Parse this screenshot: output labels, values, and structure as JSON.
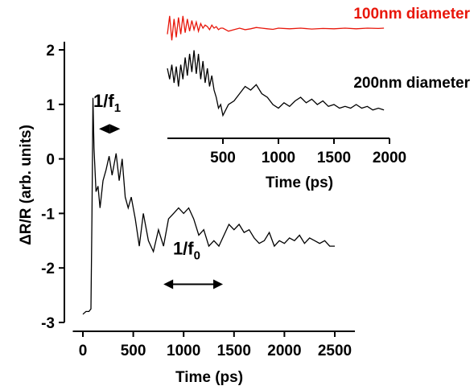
{
  "chart_data": [
    {
      "type": "line",
      "panel": "main",
      "xlabel": "Time (ps)",
      "ylabel": "ΔR/R (arb. units)",
      "xlim": [
        -100,
        2700
      ],
      "ylim": [
        -3,
        2.15
      ],
      "xticks": [
        0,
        500,
        1000,
        1500,
        2000,
        2500
      ],
      "yticks": [
        -3,
        -2,
        -1,
        0,
        1,
        2
      ],
      "grid": false,
      "annotations": [
        {
          "text": "1/f",
          "subscript": "1",
          "x": 240,
          "y": 0.95,
          "arrow": [
            160,
            370
          ],
          "arrow_y": 0.55
        },
        {
          "text": "1/f",
          "subscript": "0",
          "x": 1030,
          "y": -1.75,
          "arrow": [
            800,
            1390
          ],
          "arrow_y": -2.3
        }
      ],
      "series": [
        {
          "name": "",
          "color": "#000000",
          "x": [
            0,
            30,
            60,
            80,
            90,
            100,
            110,
            130,
            150,
            170,
            200,
            230,
            260,
            290,
            330,
            360,
            390,
            420,
            450,
            480,
            520,
            560,
            600,
            650,
            700,
            750,
            800,
            850,
            900,
            950,
            1000,
            1050,
            1100,
            1150,
            1200,
            1250,
            1300,
            1350,
            1400,
            1450,
            1500,
            1550,
            1600,
            1650,
            1700,
            1750,
            1800,
            1850,
            1900,
            1950,
            2000,
            2050,
            2100,
            2150,
            2200,
            2250,
            2300,
            2350,
            2400,
            2450,
            2500
          ],
          "y": [
            -2.85,
            -2.8,
            -2.8,
            -2.75,
            -1.0,
            1.12,
            0.2,
            -0.6,
            -0.5,
            -0.9,
            -0.4,
            -0.2,
            0.05,
            -0.3,
            0.1,
            -0.4,
            0.0,
            -0.7,
            -0.9,
            -0.7,
            -1.1,
            -1.6,
            -1.0,
            -1.5,
            -1.7,
            -1.3,
            -1.6,
            -1.1,
            -1.0,
            -0.9,
            -1.0,
            -0.9,
            -1.1,
            -1.4,
            -1.3,
            -1.6,
            -1.5,
            -1.6,
            -1.4,
            -1.2,
            -1.3,
            -1.2,
            -1.35,
            -1.3,
            -1.45,
            -1.55,
            -1.5,
            -1.35,
            -1.6,
            -1.5,
            -1.55,
            -1.45,
            -1.5,
            -1.4,
            -1.55,
            -1.45,
            -1.5,
            -1.55,
            -1.5,
            -1.6,
            -1.6
          ]
        }
      ]
    },
    {
      "type": "line",
      "panel": "inset",
      "xlabel": "Time (ps)",
      "ylabel": "",
      "xlim": [
        0,
        2000
      ],
      "xticks": [
        500,
        1000,
        1500,
        2000
      ],
      "grid": false,
      "series": [
        {
          "name": "100nm diameter",
          "color": "#e8170b",
          "x": [
            0,
            20,
            40,
            60,
            80,
            100,
            120,
            140,
            160,
            180,
            200,
            220,
            240,
            260,
            280,
            300,
            320,
            340,
            360,
            380,
            400,
            420,
            440,
            460,
            480,
            500,
            550,
            600,
            650,
            700,
            750,
            800,
            850,
            900,
            950,
            1000,
            1100,
            1200,
            1300,
            1400,
            1500,
            1600,
            1700,
            1800,
            1900,
            1950
          ],
          "y": [
            0.3,
            0.9,
            0.1,
            0.8,
            0.2,
            0.85,
            0.3,
            0.9,
            0.35,
            0.8,
            0.4,
            0.75,
            0.45,
            0.7,
            0.4,
            0.65,
            0.5,
            0.6,
            0.55,
            0.45,
            0.6,
            0.5,
            0.55,
            0.45,
            0.5,
            0.5,
            0.4,
            0.45,
            0.5,
            0.45,
            0.48,
            0.52,
            0.5,
            0.48,
            0.46,
            0.5,
            0.48,
            0.5,
            0.47,
            0.49,
            0.48,
            0.5,
            0.48,
            0.5,
            0.49,
            0.5
          ]
        },
        {
          "name": "200nm diameter",
          "color": "#000000",
          "x": [
            0,
            20,
            40,
            60,
            80,
            100,
            120,
            140,
            160,
            180,
            200,
            220,
            240,
            260,
            280,
            300,
            320,
            340,
            360,
            380,
            400,
            420,
            440,
            460,
            480,
            500,
            550,
            600,
            650,
            700,
            750,
            800,
            850,
            900,
            950,
            1000,
            1050,
            1100,
            1150,
            1200,
            1250,
            1300,
            1350,
            1400,
            1450,
            1500,
            1550,
            1600,
            1650,
            1700,
            1750,
            1800,
            1850,
            1900,
            1950
          ],
          "y": [
            0.5,
            0.2,
            0.6,
            0.1,
            0.55,
            0.0,
            0.6,
            0.2,
            0.8,
            0.3,
            0.9,
            0.4,
            1.0,
            0.35,
            0.9,
            0.2,
            0.7,
            0.1,
            0.5,
            0.0,
            0.3,
            -0.1,
            -0.3,
            -0.6,
            -0.5,
            -0.8,
            -0.5,
            -0.4,
            -0.2,
            0.0,
            -0.1,
            0.05,
            -0.2,
            -0.3,
            -0.5,
            -0.6,
            -0.45,
            -0.55,
            -0.4,
            -0.3,
            -0.45,
            -0.35,
            -0.5,
            -0.4,
            -0.55,
            -0.5,
            -0.6,
            -0.55,
            -0.6,
            -0.5,
            -0.6,
            -0.55,
            -0.65,
            -0.6,
            -0.65
          ]
        }
      ]
    }
  ]
}
